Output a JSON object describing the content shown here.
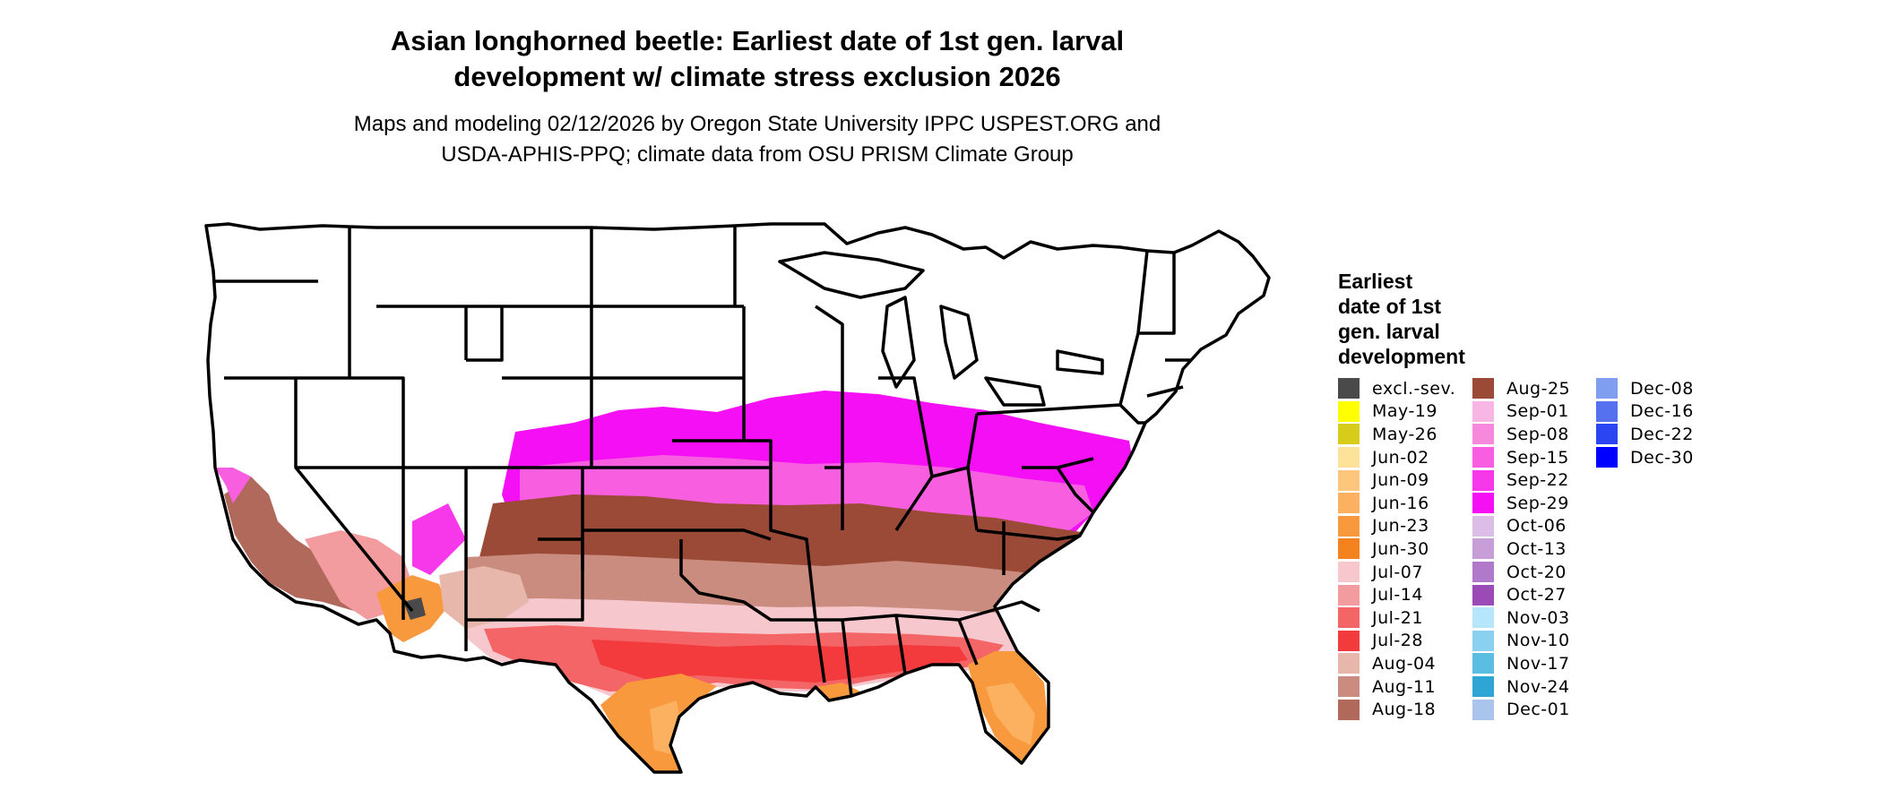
{
  "map": {
    "title_line1": "Asian longhorned beetle: Earliest date of 1st gen. larval",
    "title_line2": "development w/ climate stress exclusion 2026",
    "subtitle_line1": "Maps and modeling 02/12/2026 by Oregon State University IPPC USPEST.ORG and",
    "subtitle_line2": "USDA-APHIS-PPQ; climate data from OSU PRISM Climate Group"
  },
  "legend": {
    "title_lines": [
      "Earliest",
      "date of 1st",
      "gen. larval",
      "development"
    ],
    "columns": [
      [
        {
          "label": "excl.-sev.",
          "color": "#4a4a4a"
        },
        {
          "label": "May-19",
          "color": "#ffff00"
        },
        {
          "label": "May-26",
          "color": "#d8cc1a"
        },
        {
          "label": "Jun-02",
          "color": "#fde39a"
        },
        {
          "label": "Jun-09",
          "color": "#fcc67d"
        },
        {
          "label": "Jun-16",
          "color": "#fbb15f"
        },
        {
          "label": "Jun-23",
          "color": "#f9993d"
        },
        {
          "label": "Jun-30",
          "color": "#f4821f"
        },
        {
          "label": "Jul-07",
          "color": "#f6c8cd"
        },
        {
          "label": "Jul-14",
          "color": "#f39ca0"
        },
        {
          "label": "Jul-21",
          "color": "#f46567"
        },
        {
          "label": "Jul-28",
          "color": "#f33a3d"
        },
        {
          "label": "Aug-04",
          "color": "#e8b7ac"
        },
        {
          "label": "Aug-11",
          "color": "#c98c7e"
        },
        {
          "label": "Aug-18",
          "color": "#b0695b"
        }
      ],
      [
        {
          "label": "Aug-25",
          "color": "#9b4a37"
        },
        {
          "label": "Sep-01",
          "color": "#f7b6e3"
        },
        {
          "label": "Sep-08",
          "color": "#f789dd"
        },
        {
          "label": "Sep-15",
          "color": "#f75fe0"
        },
        {
          "label": "Sep-22",
          "color": "#f737ea"
        },
        {
          "label": "Sep-29",
          "color": "#f40ff4"
        },
        {
          "label": "Oct-06",
          "color": "#dcbde6"
        },
        {
          "label": "Oct-13",
          "color": "#c79ed8"
        },
        {
          "label": "Oct-20",
          "color": "#b079c9"
        },
        {
          "label": "Oct-27",
          "color": "#9b4bb5"
        },
        {
          "label": "Nov-03",
          "color": "#b6e6fb"
        },
        {
          "label": "Nov-10",
          "color": "#8ad1ef"
        },
        {
          "label": "Nov-17",
          "color": "#5cbde3"
        },
        {
          "label": "Nov-24",
          "color": "#2fa5d6"
        },
        {
          "label": "Dec-01",
          "color": "#a9c5eb"
        }
      ],
      [
        {
          "label": "Dec-08",
          "color": "#7f9eef"
        },
        {
          "label": "Dec-16",
          "color": "#5671f0"
        },
        {
          "label": "Dec-22",
          "color": "#2c45f3"
        },
        {
          "label": "Dec-30",
          "color": "#0000ff"
        }
      ]
    ]
  }
}
